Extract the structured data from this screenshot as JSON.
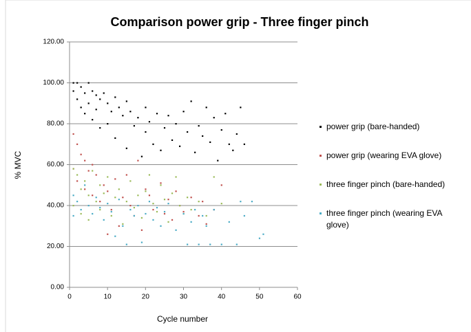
{
  "chart_data": {
    "type": "scatter",
    "title": "Comparison power grip - Three finger pinch",
    "xlabel": "Cycle number",
    "ylabel": "% MVC",
    "xlim": [
      0,
      60
    ],
    "xticks": [
      0,
      10,
      20,
      30,
      40,
      50,
      60
    ],
    "ylim": [
      0,
      120
    ],
    "yticks": [
      {
        "value": 0,
        "label": "0.00"
      },
      {
        "value": 20,
        "label": "20.00"
      },
      {
        "value": 40,
        "label": "40.00"
      },
      {
        "value": 60,
        "label": "60.00"
      },
      {
        "value": 80,
        "label": "80.00"
      },
      {
        "value": 100,
        "label": "100.00"
      },
      {
        "value": 120,
        "label": "120.00"
      }
    ],
    "grid": true,
    "legend": "right",
    "series": [
      {
        "name": "power grip (bare-handed)",
        "color": "#000000",
        "x": [
          1,
          1,
          2,
          2,
          3,
          3,
          4,
          4,
          5,
          5,
          6,
          6,
          7,
          7,
          8,
          8,
          9,
          10,
          10,
          11,
          12,
          12,
          13,
          14,
          15,
          15,
          16,
          17,
          18,
          19,
          20,
          20,
          21,
          22,
          23,
          24,
          25,
          26,
          27,
          28,
          29,
          30,
          31,
          32,
          33,
          34,
          35,
          36,
          37,
          38,
          39,
          40,
          41,
          42,
          43,
          44,
          45,
          46
        ],
        "values": [
          100,
          96,
          100,
          92,
          98,
          88,
          95,
          85,
          100,
          90,
          96,
          82,
          94,
          87,
          92,
          78,
          95,
          90,
          80,
          86,
          93,
          73,
          88,
          84,
          91,
          68,
          86,
          79,
          83,
          64,
          88,
          76,
          81,
          70,
          85,
          67,
          78,
          84,
          72,
          80,
          69,
          86,
          76,
          91,
          66,
          79,
          74,
          88,
          71,
          83,
          62,
          77,
          85,
          70,
          67,
          75,
          88,
          70
        ]
      },
      {
        "name": "power grip (wearing EVA glove)",
        "color": "#c0504d",
        "x": [
          1,
          1,
          2,
          2,
          3,
          4,
          4,
          5,
          6,
          6,
          7,
          8,
          9,
          10,
          10,
          11,
          12,
          13,
          14,
          15,
          16,
          17,
          18,
          19,
          20,
          21,
          22,
          24,
          25,
          26,
          27,
          28,
          29,
          30,
          32,
          34,
          35,
          36,
          38,
          40
        ],
        "values": [
          75,
          58,
          70,
          52,
          65,
          62,
          48,
          57,
          45,
          60,
          55,
          42,
          50,
          26,
          47,
          38,
          53,
          30,
          44,
          55,
          40,
          35,
          62,
          28,
          48,
          45,
          38,
          51,
          36,
          43,
          33,
          47,
          40,
          37,
          44,
          35,
          42,
          31,
          38,
          50
        ]
      },
      {
        "name": "three finger pinch (bare-handed)",
        "color": "#9bbb59",
        "x": [
          1,
          1,
          2,
          3,
          3,
          4,
          5,
          5,
          6,
          7,
          8,
          8,
          9,
          10,
          11,
          12,
          13,
          14,
          15,
          16,
          17,
          18,
          19,
          20,
          21,
          22,
          23,
          24,
          25,
          26,
          27,
          28,
          29,
          30,
          31,
          32,
          34,
          36,
          38,
          40
        ],
        "values": [
          58,
          40,
          55,
          48,
          36,
          52,
          45,
          33,
          57,
          42,
          50,
          38,
          46,
          54,
          35,
          44,
          48,
          31,
          42,
          52,
          39,
          45,
          34,
          47,
          55,
          41,
          37,
          50,
          43,
          32,
          46,
          54,
          40,
          36,
          44,
          38,
          42,
          35,
          54,
          41
        ]
      },
      {
        "name": "three finger pinch (wearing EVA glove)",
        "color": "#4bacc6",
        "x": [
          1,
          1,
          2,
          3,
          4,
          5,
          6,
          7,
          8,
          9,
          10,
          11,
          12,
          13,
          14,
          15,
          16,
          17,
          18,
          19,
          20,
          21,
          22,
          23,
          24,
          25,
          26,
          28,
          30,
          31,
          32,
          33,
          34,
          35,
          36,
          37,
          38,
          40,
          42,
          44,
          45,
          46,
          48,
          50,
          51
        ],
        "values": [
          45,
          35,
          42,
          38,
          50,
          40,
          36,
          44,
          39,
          33,
          41,
          37,
          25,
          43,
          30,
          21,
          38,
          35,
          40,
          22,
          36,
          42,
          33,
          39,
          30,
          37,
          41,
          28,
          36,
          21,
          32,
          38,
          21,
          35,
          30,
          21,
          38,
          21,
          32,
          21,
          42,
          35,
          42,
          24,
          26
        ]
      }
    ]
  }
}
